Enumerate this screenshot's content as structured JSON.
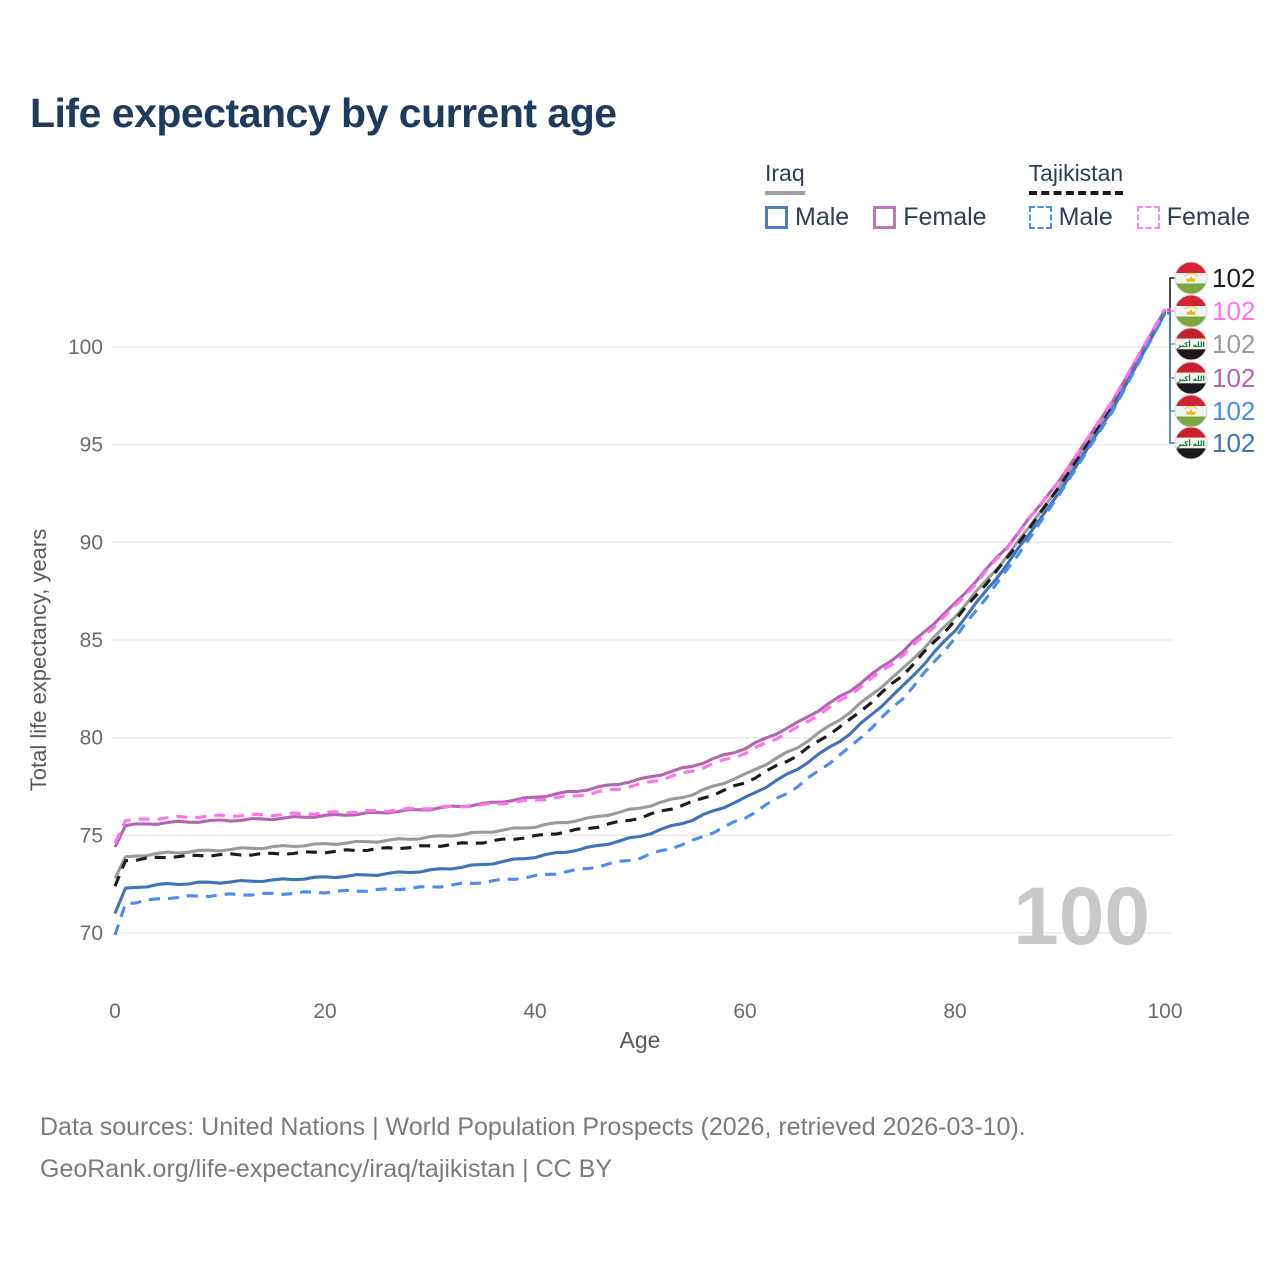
{
  "title": "Life expectancy by current age",
  "legend": {
    "groups": [
      {
        "name": "Iraq",
        "line_style": "solid",
        "underline_color": "#a0a0a0",
        "items": [
          {
            "label": "Male",
            "color": "#4E7CC0"
          },
          {
            "label": "Female",
            "color": "#C173BC"
          }
        ]
      },
      {
        "name": "Tajikistan",
        "line_style": "dashed",
        "underline_color": "#1b1b1b",
        "items": [
          {
            "label": "Male",
            "color": "#4B8BF5"
          },
          {
            "label": "Female",
            "color": "#FF85EC"
          }
        ]
      }
    ]
  },
  "watermark_age": "100",
  "footer": {
    "line1": "Data sources: United Nations | World Population Prospects (2026, retrieved 2026-03-10).",
    "line2": "GeoRank.org/life-expectancy/iraq/tajikistan | CC BY"
  },
  "flags": {
    "iraq_script": "الله أكبر",
    "iraq_colors": {
      "red": "#C7202B",
      "white": "#F4F4F2",
      "black": "#191919",
      "green": "#157A3C"
    },
    "tajikistan_colors": {
      "red": "#D32434",
      "white": "#F4F4F2",
      "green": "#7AA83D",
      "gold": "#E8B80C"
    }
  },
  "chart_data": {
    "type": "line",
    "title": "Life expectancy by current age",
    "xlabel": "Age",
    "ylabel": "Total life expectancy, years",
    "xlim": [
      0,
      100
    ],
    "ylim": [
      68.5,
      103
    ],
    "xticks": [
      0,
      20,
      40,
      60,
      80,
      100
    ],
    "yticks": [
      70,
      75,
      80,
      85,
      90,
      95,
      100
    ],
    "grid": "horizontal",
    "legend_position": "top-right",
    "x": [
      0,
      1,
      5,
      10,
      15,
      20,
      25,
      30,
      35,
      40,
      45,
      50,
      55,
      60,
      65,
      70,
      75,
      80,
      85,
      90,
      95,
      100
    ],
    "series": [
      {
        "name": "Iraq Total",
        "country": "iraq",
        "color": "#9B9B9B",
        "dash": false,
        "values": [
          72.8,
          73.9,
          74.1,
          74.25,
          74.4,
          74.55,
          74.7,
          74.9,
          75.15,
          75.45,
          75.85,
          76.4,
          77.1,
          78.1,
          79.5,
          81.3,
          83.5,
          86.2,
          89.3,
          92.9,
          97.0,
          101.85
        ]
      },
      {
        "name": "Tajikistan Total",
        "country": "tajikistan",
        "color": "#1C1C1C",
        "dash": true,
        "values": [
          72.4,
          73.7,
          73.9,
          74.0,
          74.05,
          74.15,
          74.3,
          74.45,
          74.65,
          74.95,
          75.35,
          75.9,
          76.7,
          77.7,
          79.1,
          80.9,
          83.2,
          86.0,
          89.2,
          92.9,
          97.0,
          101.85
        ]
      },
      {
        "name": "Iraq Female",
        "country": "iraq",
        "color": "#B265B1",
        "dash": false,
        "values": [
          74.4,
          75.5,
          75.65,
          75.75,
          75.85,
          76.0,
          76.15,
          76.35,
          76.6,
          76.95,
          77.35,
          77.85,
          78.55,
          79.45,
          80.75,
          82.4,
          84.4,
          86.85,
          89.8,
          93.2,
          97.2,
          101.9
        ]
      },
      {
        "name": "Iraq Male",
        "country": "iraq",
        "color": "#3E74BA",
        "dash": false,
        "values": [
          71.0,
          72.3,
          72.5,
          72.6,
          72.7,
          72.85,
          73.0,
          73.2,
          73.5,
          73.9,
          74.35,
          74.95,
          75.8,
          76.9,
          78.4,
          80.2,
          82.6,
          85.5,
          88.9,
          92.6,
          96.8,
          101.75
        ]
      },
      {
        "name": "Tajikistan Male",
        "country": "tajikistan",
        "color": "#4A8CF3",
        "dash": true,
        "values": [
          69.9,
          71.5,
          71.8,
          71.95,
          72.0,
          72.1,
          72.2,
          72.35,
          72.6,
          72.9,
          73.3,
          73.85,
          74.7,
          75.9,
          77.5,
          79.5,
          82.0,
          85.1,
          88.6,
          92.5,
          96.7,
          101.7
        ]
      },
      {
        "name": "Tajikistan Female",
        "country": "tajikistan",
        "color": "#FF74E8",
        "dash": true,
        "values": [
          74.6,
          75.75,
          75.9,
          76.0,
          76.05,
          76.15,
          76.25,
          76.4,
          76.55,
          76.8,
          77.1,
          77.6,
          78.3,
          79.2,
          80.5,
          82.2,
          84.2,
          86.7,
          89.75,
          93.2,
          97.25,
          101.95
        ]
      }
    ],
    "end_labels": [
      {
        "series": "Tajikistan Total",
        "flag": "tajikistan",
        "value_label": "102",
        "color": "#1C1C1C"
      },
      {
        "series": "Tajikistan Female",
        "flag": "tajikistan",
        "value_label": "102",
        "color": "#FF74E8"
      },
      {
        "series": "Iraq Total",
        "flag": "iraq",
        "value_label": "102",
        "color": "#9B9B9B"
      },
      {
        "series": "Iraq Female",
        "flag": "iraq",
        "value_label": "102",
        "color": "#B265B1"
      },
      {
        "series": "Tajikistan Male",
        "flag": "tajikistan",
        "value_label": "102",
        "color": "#4A8CF3"
      },
      {
        "series": "Iraq Male",
        "flag": "iraq",
        "value_label": "102",
        "color": "#3E74BA"
      }
    ]
  }
}
